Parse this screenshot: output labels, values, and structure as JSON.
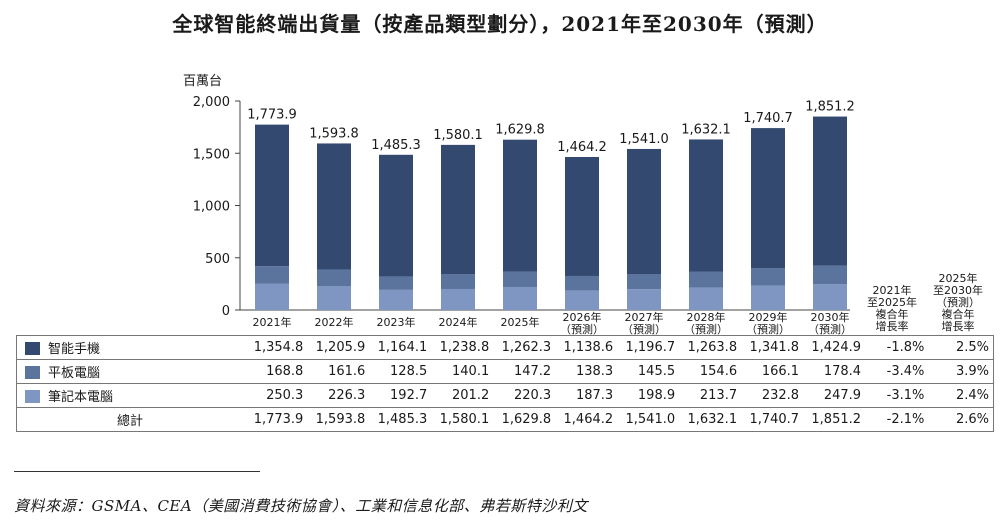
{
  "title": "全球智能終端出貨量（按產品類型劃分），2021年至2030年（預測）",
  "unit_label": "百萬台",
  "colors": {
    "smartphone": "#33496f",
    "tablet": "#5a749e",
    "laptop": "#7f96c2",
    "axis": "#444444"
  },
  "chart_data": {
    "type": "bar",
    "stacked": true,
    "title": "全球智能終端出貨量（按產品類型劃分），2021年至2030年（預測）",
    "ylabel": "百萬台",
    "ylim": [
      0,
      2000
    ],
    "yticks": [
      "0",
      "500",
      "1,000",
      "1,500",
      "2,000"
    ],
    "categories": [
      "2021年",
      "2022年",
      "2023年",
      "2024年",
      "2025年",
      "2026年",
      "2027年",
      "2028年",
      "2029年",
      "2030年"
    ],
    "category_sub": [
      "",
      "",
      "",
      "",
      "",
      "（預測）",
      "（預測）",
      "（預測）",
      "（預測）",
      "（預測）"
    ],
    "series": [
      {
        "name": "筆記本電腦",
        "values": [
          250.3,
          226.3,
          192.7,
          201.2,
          220.3,
          187.3,
          198.9,
          213.7,
          232.8,
          247.9
        ]
      },
      {
        "name": "平板電腦",
        "values": [
          168.8,
          161.6,
          128.5,
          140.1,
          147.2,
          138.3,
          145.5,
          154.6,
          166.1,
          178.4
        ]
      },
      {
        "name": "智能手機",
        "values": [
          1354.8,
          1205.9,
          1164.1,
          1238.8,
          1262.3,
          1138.6,
          1196.7,
          1263.8,
          1341.8,
          1424.9
        ]
      }
    ],
    "totals": [
      1773.9,
      1593.8,
      1485.3,
      1580.1,
      1629.8,
      1464.2,
      1541.0,
      1632.1,
      1740.7,
      1851.2
    ],
    "total_labels": [
      "1,773.9",
      "1,593.8",
      "1,485.3",
      "1,580.1",
      "1,629.8",
      "1,464.2",
      "1,541.0",
      "1,632.1",
      "1,740.7",
      "1,851.2"
    ],
    "cagr_headers": [
      [
        "2021年",
        "至2025年",
        "複合年",
        "增長率"
      ],
      [
        "2025年",
        "至2030年",
        "（預測）",
        "複合年",
        "增長率"
      ]
    ]
  },
  "table": {
    "rows": [
      {
        "label": "智能手機",
        "color_key": "smartphone",
        "values": [
          "1,354.8",
          "1,205.9",
          "1,164.1",
          "1,238.8",
          "1,262.3",
          "1,138.6",
          "1,196.7",
          "1,263.8",
          "1,341.8",
          "1,424.9"
        ],
        "cagr1": "-1.8%",
        "cagr2": "2.5%"
      },
      {
        "label": "平板電腦",
        "color_key": "tablet",
        "values": [
          "168.8",
          "161.6",
          "128.5",
          "140.1",
          "147.2",
          "138.3",
          "145.5",
          "154.6",
          "166.1",
          "178.4"
        ],
        "cagr1": "-3.4%",
        "cagr2": "3.9%"
      },
      {
        "label": "筆記本電腦",
        "color_key": "laptop",
        "values": [
          "250.3",
          "226.3",
          "192.7",
          "201.2",
          "220.3",
          "187.3",
          "198.9",
          "213.7",
          "232.8",
          "247.9"
        ],
        "cagr1": "-3.1%",
        "cagr2": "2.4%"
      }
    ],
    "total": {
      "label": "總計",
      "values": [
        "1,773.9",
        "1,593.8",
        "1,485.3",
        "1,580.1",
        "1,629.8",
        "1,464.2",
        "1,541.0",
        "1,632.1",
        "1,740.7",
        "1,851.2"
      ],
      "cagr1": "-2.1%",
      "cagr2": "2.6%"
    }
  },
  "source": "資料來源：GSMA、CEA（美國消費技術協會）、工業和信息化部、弗若斯特沙利文"
}
